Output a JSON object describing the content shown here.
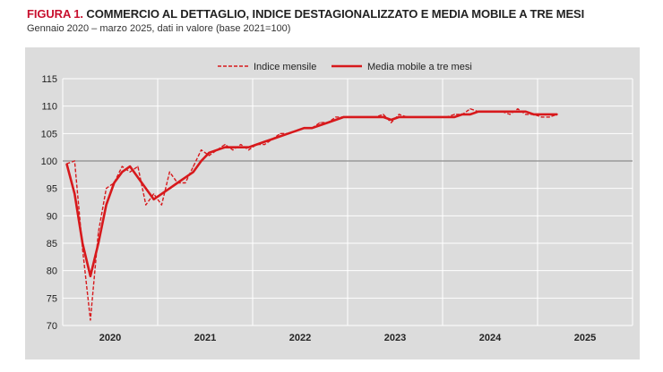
{
  "header": {
    "prefix": "FIGURA 1.",
    "title": "COMMERCIO AL DETTAGLIO, INDICE DESTAGIONALIZZATO E MEDIA MOBILE A TRE MESI",
    "subtitle": "Gennaio 2020 – marzo 2025, dati in valore (base 2021=100)"
  },
  "colors": {
    "series": "#d7191c",
    "reference": "#8c8c8c",
    "grid": "#ffffff",
    "background": "#dcdcdc"
  },
  "chart_data": {
    "type": "line",
    "title": "COMMERCIO AL DETTAGLIO, INDICE DESTAGIONALIZZATO E MEDIA MOBILE A TRE MESI",
    "subtitle": "Gennaio 2020 – marzo 2025, dati in valore (base 2021=100)",
    "xlabel": "",
    "ylabel": "",
    "ylim": [
      70,
      115
    ],
    "yticks": [
      70,
      75,
      80,
      85,
      90,
      95,
      100,
      105,
      110,
      115
    ],
    "xticks": [
      "2020",
      "2021",
      "2022",
      "2023",
      "2024",
      "2025"
    ],
    "x_start": "2020-01",
    "x_end": "2025-03",
    "reference_line": 100,
    "grid": true,
    "legend_position": "top-center",
    "series": [
      {
        "name": "Indice mensile",
        "style": "dashed",
        "values": [
          99.5,
          100,
          84,
          71,
          87,
          95,
          96,
          99,
          98,
          99,
          92,
          94,
          92,
          98,
          96,
          96,
          99,
          102,
          101,
          102,
          103,
          102,
          103,
          102,
          103,
          103,
          104,
          105,
          105,
          105.5,
          106,
          106,
          107,
          107,
          108,
          108,
          108,
          108,
          108,
          108,
          108.5,
          107,
          108.5,
          108,
          108,
          108,
          108,
          108,
          108,
          108.5,
          108.5,
          109.5,
          109,
          109,
          109,
          109,
          108.5,
          109.5,
          108.5,
          108.5,
          108,
          108,
          108.5
        ]
      },
      {
        "name": "Media mobile a tre mesi",
        "style": "solid",
        "values": [
          99.5,
          94,
          85,
          79,
          85,
          92,
          96,
          98,
          99,
          97,
          95,
          93,
          94,
          95,
          96,
          97,
          98,
          100,
          101.5,
          102,
          102.5,
          102.5,
          102.5,
          102.5,
          103,
          103.5,
          104,
          104.5,
          105,
          105.5,
          106,
          106,
          106.5,
          107,
          107.5,
          108,
          108,
          108,
          108,
          108,
          108,
          107.5,
          108,
          108,
          108,
          108,
          108,
          108,
          108,
          108,
          108.5,
          108.5,
          109,
          109,
          109,
          109,
          109,
          109,
          109,
          108.5,
          108.5,
          108.5,
          108.5
        ]
      }
    ]
  }
}
